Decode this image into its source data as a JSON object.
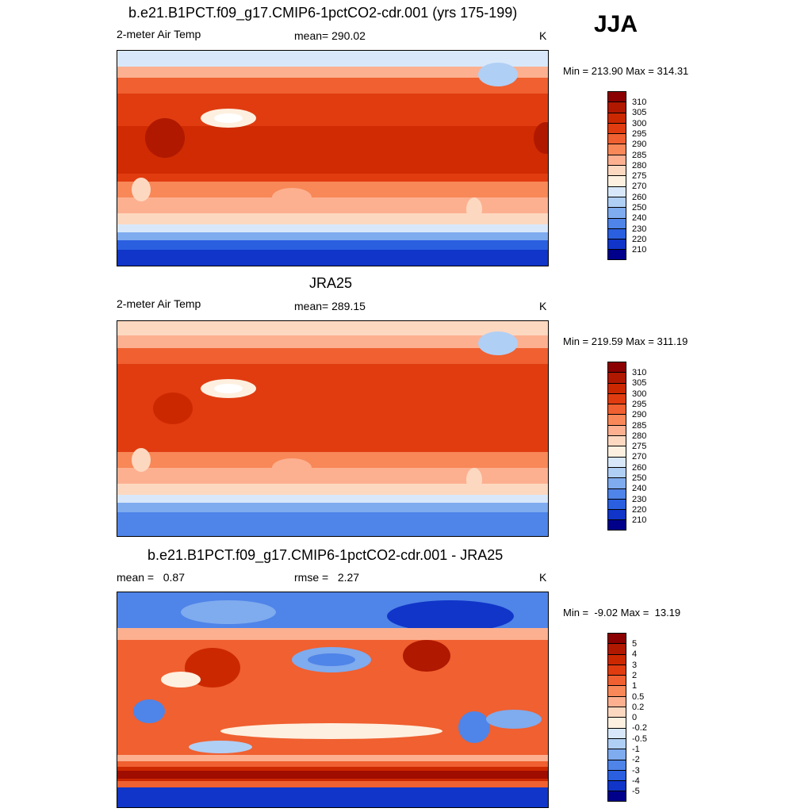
{
  "season": "JJA",
  "panels": [
    {
      "title": "b.e21.B1PCT.f09_g17.CMIP6-1pctCO2-cdr.001 (yrs 175-199)",
      "left": "2-meter Air Temp",
      "center": "mean= 290.02",
      "units": "K",
      "minmax": "Min = 213.90 Max = 314.31",
      "levels": [
        "310",
        "305",
        "300",
        "295",
        "290",
        "285",
        "280",
        "275",
        "270",
        "260",
        "250",
        "240",
        "230",
        "220",
        "210"
      ],
      "colors": [
        "#8b0000",
        "#b01800",
        "#cc2800",
        "#e03c10",
        "#f06030",
        "#f88858",
        "#fcb090",
        "#fdd8c0",
        "#fef0e0",
        "#d8e8fa",
        "#b0cff5",
        "#7fabef",
        "#4f84e8",
        "#2a5fe0",
        "#1035c8",
        "#00008b"
      ]
    },
    {
      "title": "JRA25",
      "left": "2-meter Air Temp",
      "center": "mean= 289.15",
      "units": "K",
      "minmax": "Min = 219.59 Max = 311.19",
      "levels": [
        "310",
        "305",
        "300",
        "295",
        "290",
        "285",
        "280",
        "275",
        "270",
        "260",
        "250",
        "240",
        "230",
        "220",
        "210"
      ],
      "colors": [
        "#8b0000",
        "#b01800",
        "#cc2800",
        "#e03c10",
        "#f06030",
        "#f88858",
        "#fcb090",
        "#fdd8c0",
        "#fef0e0",
        "#d8e8fa",
        "#b0cff5",
        "#7fabef",
        "#4f84e8",
        "#2a5fe0",
        "#1035c8",
        "#00008b"
      ]
    },
    {
      "title": "b.e21.B1PCT.f09_g17.CMIP6-1pctCO2-cdr.001 - JRA25",
      "left": "mean =   0.87",
      "center": "rmse =   2.27",
      "units": "K",
      "minmax": "Min =  -9.02 Max =  13.19",
      "levels": [
        "5",
        "4",
        "3",
        "2",
        "1",
        "0.5",
        "0.2",
        "0",
        "-0.2",
        "-0.5",
        "-1",
        "-2",
        "-3",
        "-4",
        "-5"
      ],
      "colors": [
        "#8b0000",
        "#b01800",
        "#cc2800",
        "#e03c10",
        "#f06030",
        "#f88858",
        "#fcb090",
        "#fdd8c0",
        "#fef0e0",
        "#d8e8fa",
        "#b0cff5",
        "#7fabef",
        "#4f84e8",
        "#2a5fe0",
        "#1035c8",
        "#00008b"
      ]
    }
  ]
}
